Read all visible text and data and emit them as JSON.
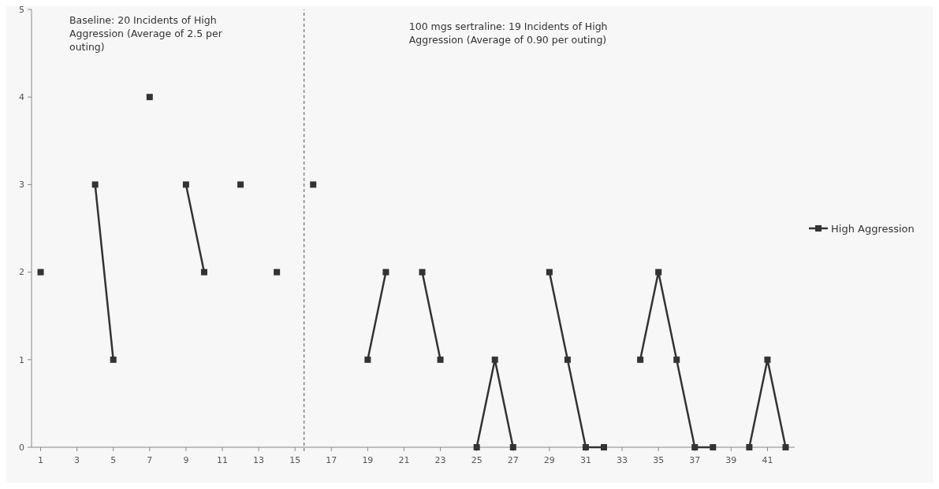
{
  "chart_data": {
    "type": "line",
    "x": [
      1,
      2,
      3,
      4,
      5,
      6,
      7,
      8,
      9,
      10,
      11,
      12,
      13,
      14,
      15,
      16,
      17,
      18,
      19,
      20,
      21,
      22,
      23,
      24,
      25,
      26,
      27,
      28,
      29,
      30,
      31,
      32,
      33,
      34,
      35,
      36,
      37,
      38,
      39,
      40,
      41,
      42
    ],
    "xlim": [
      0.5,
      42.5
    ],
    "xticks": [
      1,
      3,
      5,
      7,
      9,
      11,
      13,
      15,
      17,
      19,
      21,
      23,
      25,
      27,
      29,
      31,
      33,
      35,
      37,
      39,
      41
    ],
    "ylim": [
      0,
      5
    ],
    "yticks": [
      0,
      1,
      2,
      3,
      4,
      5
    ],
    "series": [
      {
        "name": "High Aggression",
        "color": "#333333",
        "values": [
          2,
          null,
          null,
          3,
          1,
          null,
          4,
          null,
          3,
          2,
          null,
          3,
          null,
          2,
          null,
          3,
          null,
          null,
          1,
          2,
          null,
          2,
          1,
          null,
          0,
          1,
          0,
          null,
          2,
          1,
          0,
          0,
          null,
          1,
          2,
          1,
          0,
          0,
          null,
          0,
          1,
          0
        ]
      }
    ],
    "ref_lines": [
      {
        "axis": "x",
        "value": 15.5,
        "color": "#555555",
        "line_style": "dashed"
      }
    ],
    "annotations": [
      "Baseline: 20 Incidents of High Aggression (Average of 2.5 per outing)",
      "100 mgs sertraline: 19 Incidents of High Aggression (Average of 0.90 per outing)"
    ],
    "marker": "square",
    "line_style": "solid",
    "legend": "right",
    "grid": false
  }
}
